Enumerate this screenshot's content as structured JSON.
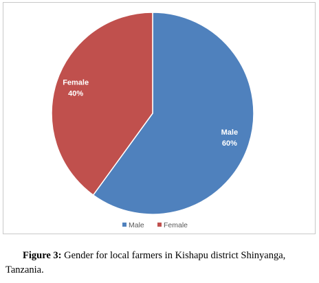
{
  "chart_data": {
    "type": "pie",
    "categories": [
      "Male",
      "Female"
    ],
    "series": [
      {
        "name": "Gender",
        "values": [
          60,
          40
        ],
        "value_labels": [
          "60%",
          "40%"
        ]
      }
    ],
    "colors": [
      "#4f81bd",
      "#c0504d"
    ],
    "legend": "bottom"
  },
  "caption": {
    "label": "Figure 3:",
    "text": "Gender for local farmers in Kishapu district Shinyanga, Tanzania."
  }
}
